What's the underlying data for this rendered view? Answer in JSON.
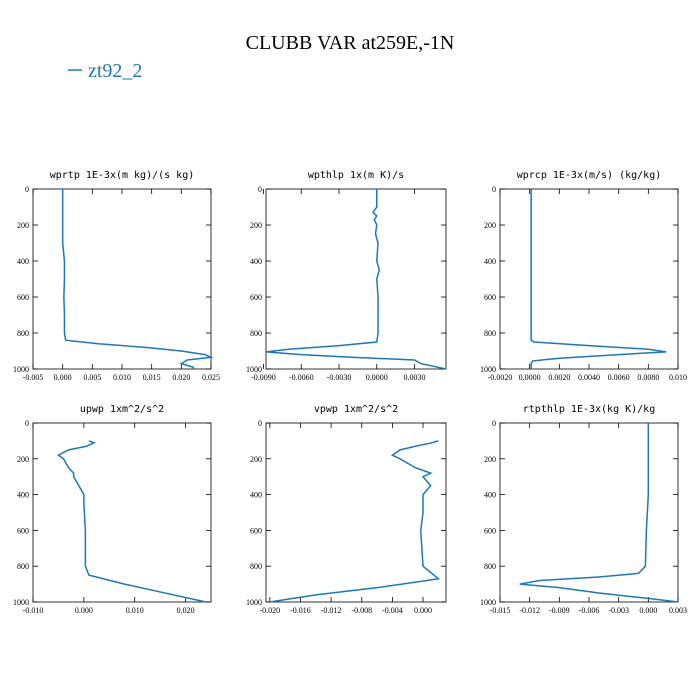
{
  "title": "CLUBB VAR at259E,-1N",
  "legend": {
    "name": "zt92_2",
    "color": "#1f77b4"
  },
  "chart_data": [
    {
      "type": "line",
      "title": "wprtp  1E-3x(m kg)/(s kg)",
      "xlim": [
        -0.005,
        0.025
      ],
      "ylim": [
        1000,
        0
      ],
      "xticks": [
        -0.005,
        {
          "value": 0,
          "label": "0.000"
        },
        0.005,
        {
          "value": 0.01,
          "label": "0.010"
        },
        0.015,
        {
          "value": 0.02,
          "label": "0.020"
        },
        0.025
      ],
      "yticks": [
        0,
        200,
        400,
        600,
        800,
        1000
      ],
      "series": [
        {
          "color": "#1f77b4",
          "levels": [
            0,
            100,
            200,
            300,
            400,
            500,
            600,
            700,
            800,
            840,
            860,
            880,
            900,
            920,
            935,
            950,
            970,
            990,
            1000
          ],
          "values": [
            0,
            0,
            0,
            0,
            0.0003,
            0.0003,
            0.0002,
            0.0003,
            0.0003,
            0.0005,
            0.006,
            0.014,
            0.02,
            0.024,
            0.025,
            0.021,
            0.02,
            0.022,
            0.022
          ]
        }
      ]
    },
    {
      "type": "line",
      "title": "wpthlp  1x(m K)/s",
      "xlim": [
        -0.0088,
        0.0055
      ],
      "ylim": [
        1000,
        0
      ],
      "xticks": [
        {
          "value": -0.009,
          "label": "-0.0090"
        },
        {
          "value": -0.006,
          "label": "-0.0060"
        },
        {
          "value": -0.003,
          "label": "-0.0030"
        },
        {
          "value": 0,
          "label": "0.0000"
        },
        {
          "value": 0.003,
          "label": "0.0030"
        }
      ],
      "yticks": [
        0,
        200,
        400,
        600,
        800,
        1000
      ],
      "series": [
        {
          "color": "#1f77b4",
          "levels": [
            0,
            100,
            130,
            150,
            170,
            200,
            250,
            300,
            400,
            450,
            500,
            600,
            800,
            850,
            870,
            890,
            905,
            920,
            935,
            950,
            970,
            1000
          ],
          "values": [
            0,
            0,
            -0.0003,
            0,
            -0.0002,
            0,
            -0.0001,
            0.0001,
            0,
            0.0002,
            0,
            0.0001,
            0.0001,
            0,
            -0.003,
            -0.007,
            -0.0088,
            -0.006,
            -0.002,
            0.003,
            0.0035,
            0.0055
          ]
        }
      ]
    },
    {
      "type": "line",
      "title": "wprcp  1E-3x(m/s) (kg/kg)",
      "xlim": [
        -0.002,
        0.01
      ],
      "ylim": [
        1000,
        0
      ],
      "xticks": [
        {
          "value": -0.002,
          "label": "-0.0020"
        },
        {
          "value": 0,
          "label": "0.0000"
        },
        {
          "value": 0.002,
          "label": "0.0020"
        },
        {
          "value": 0.004,
          "label": "0.0040"
        },
        {
          "value": 0.006,
          "label": "0.0060"
        },
        {
          "value": 0.008,
          "label": "0.0080"
        },
        {
          "value": 0.01,
          "label": "0.010"
        }
      ],
      "yticks": [
        0,
        200,
        400,
        600,
        800,
        1000
      ],
      "series": [
        {
          "color": "#1f77b4",
          "levels": [
            0,
            200,
            400,
            600,
            800,
            840,
            850,
            870,
            890,
            905,
            920,
            940,
            955,
            970,
            1000
          ],
          "values": [
            0.0001,
            0.0001,
            0.0001,
            0.0001,
            0.0001,
            0.0001,
            0.0003,
            0.004,
            0.008,
            0.0092,
            0.006,
            0.002,
            0.0002,
            0.0001,
            0.0001
          ]
        }
      ]
    },
    {
      "type": "line",
      "title": "upwp  1xm^2/s^2",
      "xlim": [
        -0.01,
        0.025
      ],
      "ylim": [
        1000,
        0
      ],
      "xticks": [
        {
          "value": -0.01,
          "label": "-0.010"
        },
        {
          "value": 0,
          "label": "0.000"
        },
        {
          "value": 0.01,
          "label": "0.010"
        },
        {
          "value": 0.02,
          "label": "0.020"
        }
      ],
      "yticks": [
        0,
        200,
        400,
        600,
        800,
        1000
      ],
      "series": [
        {
          "color": "#1f77b4",
          "levels": [
            100,
            110,
            130,
            150,
            180,
            200,
            250,
            280,
            300,
            350,
            400,
            450,
            600,
            800,
            850,
            900,
            950,
            1000
          ],
          "values": [
            0.001,
            0.002,
            0.0005,
            -0.003,
            -0.005,
            -0.004,
            -0.003,
            -0.002,
            -0.002,
            -0.001,
            0,
            0,
            0.0003,
            0.0003,
            0.001,
            0.008,
            0.016,
            0.024
          ]
        }
      ]
    },
    {
      "type": "line",
      "title": "vpwp  1xm^2/s^2",
      "xlim": [
        -0.0205,
        0.003
      ],
      "ylim": [
        1000,
        0
      ],
      "xticks": [
        {
          "value": -0.02,
          "label": "-0.020"
        },
        -0.016,
        {
          "value": -0.012,
          "label": "-0.012"
        },
        {
          "value": -0.008,
          "label": "-0.008"
        },
        -0.004,
        {
          "value": 0,
          "label": "0.000"
        }
      ],
      "yticks": [
        0,
        200,
        400,
        600,
        800,
        1000
      ],
      "series": [
        {
          "color": "#1f77b4",
          "levels": [
            100,
            110,
            130,
            150,
            180,
            200,
            250,
            280,
            300,
            350,
            400,
            500,
            600,
            800,
            870,
            880,
            920,
            960,
            1000
          ],
          "values": [
            0.002,
            0.0012,
            -0.001,
            -0.003,
            -0.004,
            -0.003,
            -0.001,
            0.001,
            0,
            0.001,
            0,
            0,
            -0.0003,
            0,
            0.002,
            0.0005,
            -0.006,
            -0.014,
            -0.02
          ]
        }
      ]
    },
    {
      "type": "line",
      "title": "rtpthlp  1E-3x(kg K)/kg",
      "xlim": [
        -0.015,
        0.003
      ],
      "ylim": [
        1000,
        0
      ],
      "xticks": [
        -0.015,
        -0.012,
        -0.009,
        -0.006,
        -0.003,
        {
          "value": 0,
          "label": "0.000"
        },
        0.003
      ],
      "yticks": [
        0,
        200,
        400,
        600,
        800,
        1000
      ],
      "series": [
        {
          "color": "#1f77b4",
          "levels": [
            0,
            400,
            600,
            800,
            840,
            860,
            880,
            900,
            920,
            950,
            980,
            1000
          ],
          "values": [
            0,
            0,
            -0.0002,
            -0.0003,
            -0.001,
            -0.005,
            -0.011,
            -0.013,
            -0.009,
            -0.005,
            0,
            0.003
          ]
        }
      ]
    }
  ]
}
